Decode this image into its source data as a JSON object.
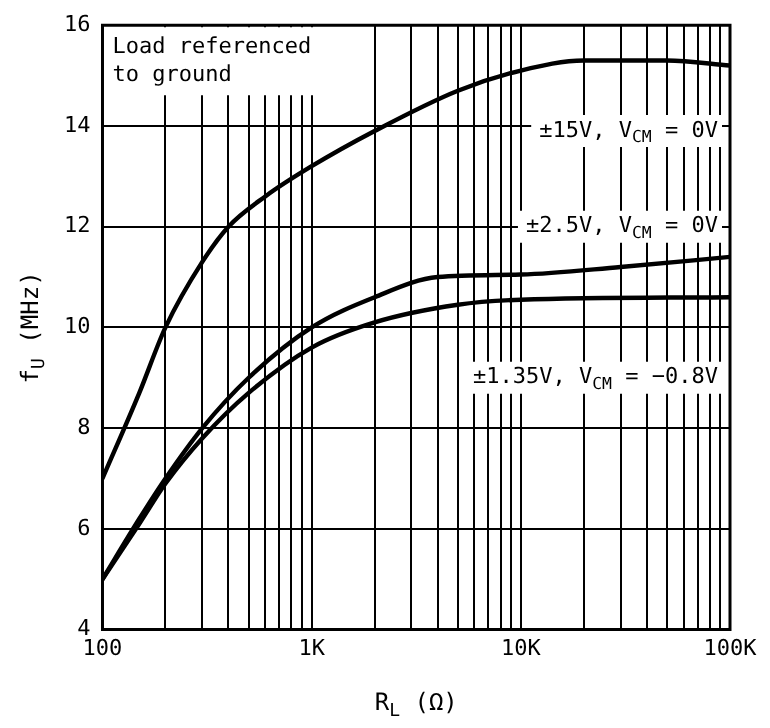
{
  "chart_data": {
    "type": "line",
    "xlabel": "R$_{L}$ (Ω)",
    "ylabel": "f$_{U}$ (MHz)",
    "log": "x",
    "grid": true,
    "legend": false,
    "marker": "none",
    "line_style": "solid",
    "xlim": [
      100,
      100000
    ],
    "ylim": [
      4,
      16
    ],
    "xticks": [
      {
        "value": 100,
        "label": "100"
      },
      {
        "value": 200,
        "label": null
      },
      {
        "value": 300,
        "label": null
      },
      {
        "value": 400,
        "label": null
      },
      {
        "value": 500,
        "label": null
      },
      {
        "value": 600,
        "label": null
      },
      {
        "value": 700,
        "label": null
      },
      {
        "value": 800,
        "label": null
      },
      {
        "value": 900,
        "label": null
      },
      {
        "value": 1000,
        "label": "1K"
      },
      {
        "value": 2000,
        "label": null
      },
      {
        "value": 3000,
        "label": null
      },
      {
        "value": 4000,
        "label": null
      },
      {
        "value": 5000,
        "label": null
      },
      {
        "value": 6000,
        "label": null
      },
      {
        "value": 7000,
        "label": null
      },
      {
        "value": 8000,
        "label": null
      },
      {
        "value": 9000,
        "label": null
      },
      {
        "value": 10000,
        "label": "10K"
      },
      {
        "value": 20000,
        "label": null
      },
      {
        "value": 30000,
        "label": null
      },
      {
        "value": 40000,
        "label": null
      },
      {
        "value": 50000,
        "label": null
      },
      {
        "value": 60000,
        "label": null
      },
      {
        "value": 70000,
        "label": null
      },
      {
        "value": 80000,
        "label": null
      },
      {
        "value": 90000,
        "label": null
      },
      {
        "value": 100000,
        "label": "100K"
      }
    ],
    "yticks": [
      4,
      6,
      8,
      10,
      12,
      14,
      16
    ],
    "annotations": [
      "Load referenced to ground"
    ],
    "series": [
      {
        "name": "±15V, V$_{CM}$ = 0V",
        "color": "#000000",
        "x": [
          100,
          150,
          200,
          300,
          400,
          600,
          1000,
          2000,
          5000,
          10000,
          20000,
          50000,
          100000
        ],
        "values": [
          7,
          8.7,
          10,
          11.3,
          12,
          12.6,
          13.2,
          13.9,
          14.7,
          15.1,
          15.3,
          15.3,
          15.2
        ]
      },
      {
        "name": "±2.5V, V$_{CM}$ = 0V",
        "color": "#000000",
        "x": [
          100,
          150,
          200,
          300,
          500,
          1000,
          2000,
          4000,
          10000,
          30000,
          100000
        ],
        "values": [
          5,
          6.2,
          7,
          8,
          9,
          10,
          10.6,
          11,
          11.05,
          11.2,
          11.4
        ]
      },
      {
        "name": "±1.35V, V$_{CM}$ = −0.8V",
        "color": "#000000",
        "x": [
          100,
          150,
          200,
          300,
          500,
          1000,
          2000,
          5000,
          10000,
          100000
        ],
        "values": [
          5,
          6.1,
          6.9,
          7.8,
          8.7,
          9.6,
          10.1,
          10.45,
          10.55,
          10.6
        ]
      }
    ]
  }
}
